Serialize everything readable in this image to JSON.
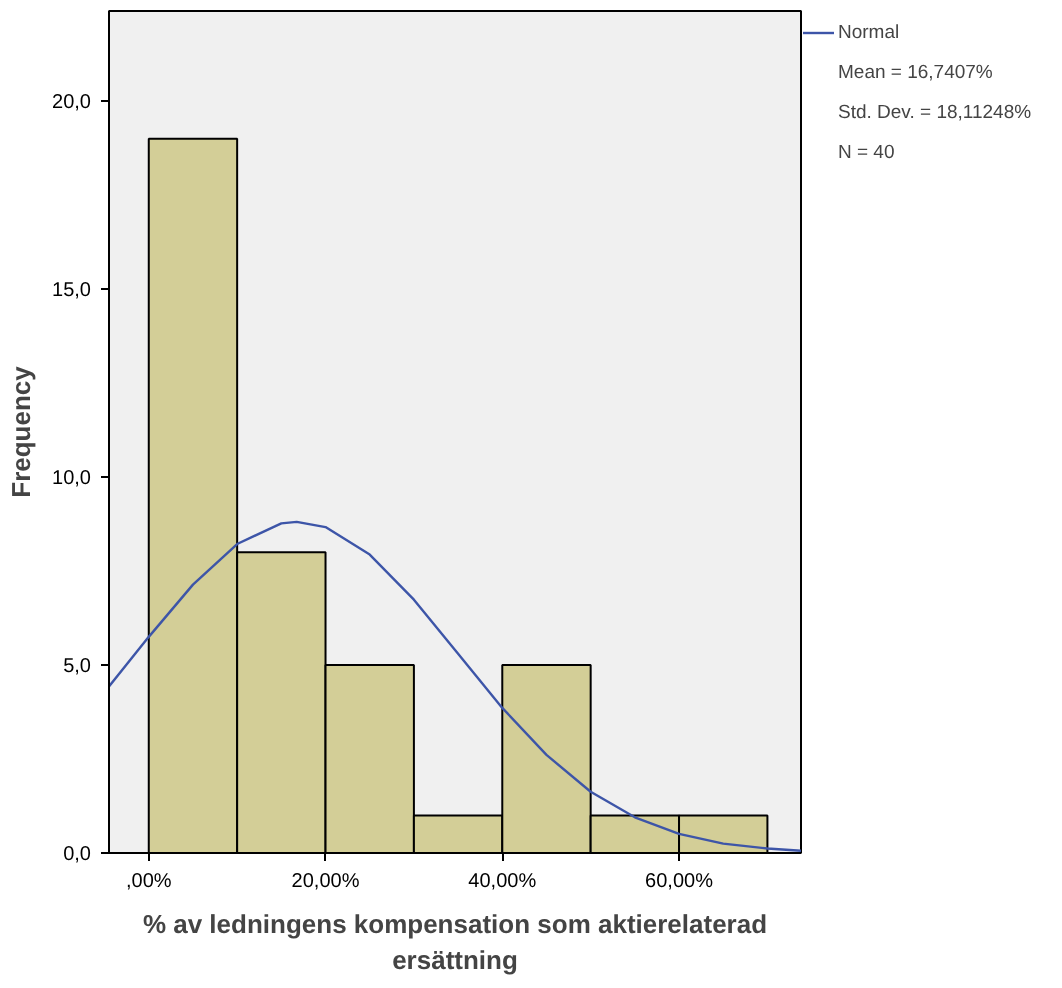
{
  "chart_data": {
    "type": "histogram",
    "xlabel": "% av ledningens kompensation som aktierelaterad\nersättning",
    "ylabel": "Frequency",
    "bins": [
      0,
      10,
      20,
      30,
      40,
      50,
      60,
      70
    ],
    "values": [
      19,
      8,
      5,
      1,
      5,
      1,
      1
    ],
    "color": "#d3ce97",
    "series": [
      {
        "type": "line",
        "name": "Normal",
        "color": "#3d55a8",
        "x": [
          -4.5,
          0,
          5,
          10,
          15,
          16.74,
          20,
          25,
          30,
          35,
          40,
          45,
          50,
          55,
          60,
          65,
          70,
          73.8
        ],
        "values": [
          4.43,
          5.75,
          7.14,
          8.22,
          8.77,
          8.81,
          8.67,
          7.94,
          6.74,
          5.3,
          3.86,
          2.61,
          1.63,
          0.95,
          0.51,
          0.25,
          0.12,
          0.06
        ]
      }
    ],
    "xlim": [
      -4.5,
      73.8
    ],
    "ylim": [
      0,
      22.4
    ],
    "xticks": [
      {
        "value": 0,
        "label": ",00%"
      },
      {
        "value": 20,
        "label": "20,00%"
      },
      {
        "value": 40,
        "label": "40,00%"
      },
      {
        "value": 60,
        "label": "60,00%"
      }
    ],
    "yticks": [
      {
        "value": 0,
        "label": "0,0"
      },
      {
        "value": 5,
        "label": "5,0"
      },
      {
        "value": 10,
        "label": "10,0"
      },
      {
        "value": 15,
        "label": "15,0"
      },
      {
        "value": 20,
        "label": "20,0"
      }
    ],
    "annotations": [
      "Mean = 16,7407%",
      "Std. Dev. = 18,11248%",
      "N = 40"
    ],
    "legend": "top right",
    "grid": false
  }
}
